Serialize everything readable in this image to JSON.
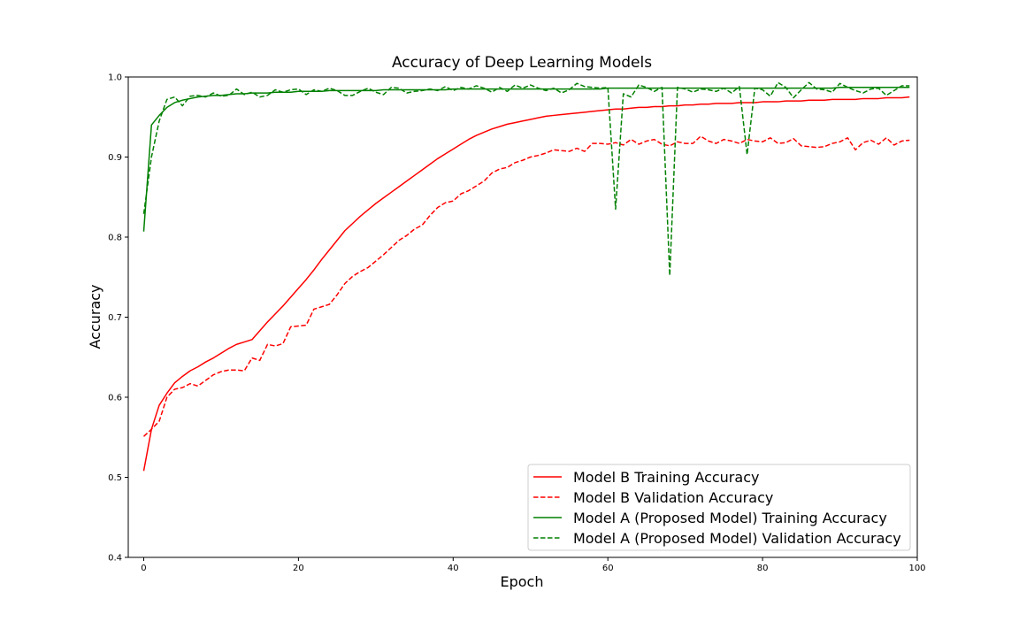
{
  "chart_data": {
    "type": "line",
    "title": "Accuracy of Deep Learning Models",
    "xlabel": "Epoch",
    "ylabel": "Accuracy",
    "xlim": [
      -2,
      100
    ],
    "ylim": [
      0.4,
      1.0
    ],
    "xticks": [
      0,
      20,
      40,
      60,
      80,
      100
    ],
    "yticks": [
      0.4,
      0.5,
      0.6,
      0.7,
      0.8,
      0.9,
      1.0
    ],
    "xtick_labels": [
      "0",
      "20",
      "40",
      "60",
      "80",
      "100"
    ],
    "ytick_labels": [
      "0.4",
      "0.5",
      "0.6",
      "0.7",
      "0.8",
      "0.9",
      "1.0"
    ],
    "grid": false,
    "legend_position": "lower-right",
    "series": [
      {
        "name": "Model B Training Accuracy",
        "color": "#ff0000",
        "style": "solid",
        "values": [
          0.508,
          0.56,
          0.59,
          0.605,
          0.618,
          0.626,
          0.633,
          0.638,
          0.644,
          0.649,
          0.655,
          0.661,
          0.666,
          0.669,
          0.672,
          0.683,
          0.694,
          0.704,
          0.714,
          0.725,
          0.736,
          0.747,
          0.759,
          0.772,
          0.784,
          0.796,
          0.808,
          0.817,
          0.826,
          0.834,
          0.842,
          0.849,
          0.856,
          0.863,
          0.87,
          0.877,
          0.884,
          0.891,
          0.898,
          0.904,
          0.91,
          0.916,
          0.922,
          0.927,
          0.931,
          0.935,
          0.938,
          0.941,
          0.943,
          0.945,
          0.947,
          0.949,
          0.951,
          0.952,
          0.953,
          0.954,
          0.955,
          0.956,
          0.957,
          0.958,
          0.959,
          0.96,
          0.96,
          0.961,
          0.962,
          0.962,
          0.963,
          0.963,
          0.964,
          0.964,
          0.965,
          0.965,
          0.966,
          0.966,
          0.967,
          0.967,
          0.967,
          0.968,
          0.968,
          0.968,
          0.969,
          0.969,
          0.969,
          0.97,
          0.97,
          0.97,
          0.971,
          0.971,
          0.971,
          0.972,
          0.972,
          0.972,
          0.972,
          0.973,
          0.973,
          0.973,
          0.974,
          0.974,
          0.974,
          0.975
        ]
      },
      {
        "name": "Model B Validation Accuracy",
        "color": "#ff0000",
        "style": "dashed",
        "values": [
          0.551,
          0.56,
          0.57,
          0.6,
          0.61,
          0.612,
          0.617,
          0.614,
          0.621,
          0.628,
          0.632,
          0.634,
          0.634,
          0.633,
          0.649,
          0.646,
          0.666,
          0.664,
          0.667,
          0.688,
          0.689,
          0.69,
          0.71,
          0.713,
          0.716,
          0.728,
          0.742,
          0.751,
          0.757,
          0.762,
          0.77,
          0.778,
          0.787,
          0.796,
          0.802,
          0.81,
          0.815,
          0.827,
          0.837,
          0.843,
          0.845,
          0.854,
          0.858,
          0.864,
          0.87,
          0.88,
          0.885,
          0.887,
          0.893,
          0.896,
          0.9,
          0.902,
          0.905,
          0.909,
          0.908,
          0.907,
          0.911,
          0.907,
          0.917,
          0.917,
          0.916,
          0.918,
          0.915,
          0.922,
          0.916,
          0.92,
          0.922,
          0.916,
          0.914,
          0.919,
          0.917,
          0.917,
          0.926,
          0.92,
          0.917,
          0.922,
          0.92,
          0.917,
          0.922,
          0.92,
          0.919,
          0.924,
          0.917,
          0.918,
          0.923,
          0.914,
          0.913,
          0.912,
          0.913,
          0.917,
          0.919,
          0.924,
          0.909,
          0.918,
          0.921,
          0.916,
          0.924,
          0.915,
          0.92,
          0.921
        ]
      },
      {
        "name": "Model A (Proposed Model) Training Accuracy",
        "color": "#008000",
        "style": "solid",
        "values": [
          0.807,
          0.94,
          0.952,
          0.962,
          0.968,
          0.971,
          0.973,
          0.975,
          0.976,
          0.977,
          0.977,
          0.978,
          0.979,
          0.979,
          0.98,
          0.98,
          0.98,
          0.981,
          0.981,
          0.981,
          0.982,
          0.982,
          0.982,
          0.982,
          0.983,
          0.983,
          0.983,
          0.983,
          0.983,
          0.983,
          0.983,
          0.984,
          0.984,
          0.984,
          0.984,
          0.984,
          0.984,
          0.984,
          0.984,
          0.984,
          0.985,
          0.985,
          0.985,
          0.985,
          0.985,
          0.985,
          0.985,
          0.985,
          0.985,
          0.985,
          0.985,
          0.985,
          0.985,
          0.985,
          0.985,
          0.985,
          0.985,
          0.985,
          0.985,
          0.985,
          0.986,
          0.986,
          0.986,
          0.986,
          0.986,
          0.986,
          0.986,
          0.986,
          0.986,
          0.986,
          0.986,
          0.986,
          0.986,
          0.986,
          0.986,
          0.986,
          0.986,
          0.986,
          0.986,
          0.986,
          0.986,
          0.986,
          0.986,
          0.986,
          0.986,
          0.986,
          0.986,
          0.986,
          0.986,
          0.986,
          0.987,
          0.987,
          0.987,
          0.987,
          0.987,
          0.987,
          0.987,
          0.987,
          0.987,
          0.987
        ]
      },
      {
        "name": "Model A (Proposed Model) Validation Accuracy",
        "color": "#008000",
        "style": "dashed",
        "values": [
          0.829,
          0.9,
          0.945,
          0.972,
          0.975,
          0.964,
          0.976,
          0.977,
          0.975,
          0.98,
          0.976,
          0.977,
          0.985,
          0.978,
          0.981,
          0.975,
          0.977,
          0.984,
          0.981,
          0.984,
          0.985,
          0.978,
          0.984,
          0.982,
          0.986,
          0.983,
          0.977,
          0.977,
          0.982,
          0.986,
          0.981,
          0.978,
          0.987,
          0.986,
          0.98,
          0.982,
          0.983,
          0.985,
          0.983,
          0.988,
          0.983,
          0.987,
          0.985,
          0.989,
          0.986,
          0.981,
          0.987,
          0.982,
          0.99,
          0.986,
          0.99,
          0.986,
          0.983,
          0.986,
          0.98,
          0.984,
          0.992,
          0.988,
          0.987,
          0.986,
          0.987,
          0.835,
          0.979,
          0.975,
          0.99,
          0.987,
          0.982,
          0.987,
          0.752,
          0.987,
          0.985,
          0.981,
          0.985,
          0.984,
          0.982,
          0.986,
          0.98,
          0.988,
          0.903,
          0.986,
          0.984,
          0.976,
          0.993,
          0.987,
          0.974,
          0.984,
          0.993,
          0.985,
          0.984,
          0.981,
          0.992,
          0.987,
          0.983,
          0.98,
          0.985,
          0.986,
          0.977,
          0.983,
          0.989,
          0.989
        ]
      }
    ]
  }
}
